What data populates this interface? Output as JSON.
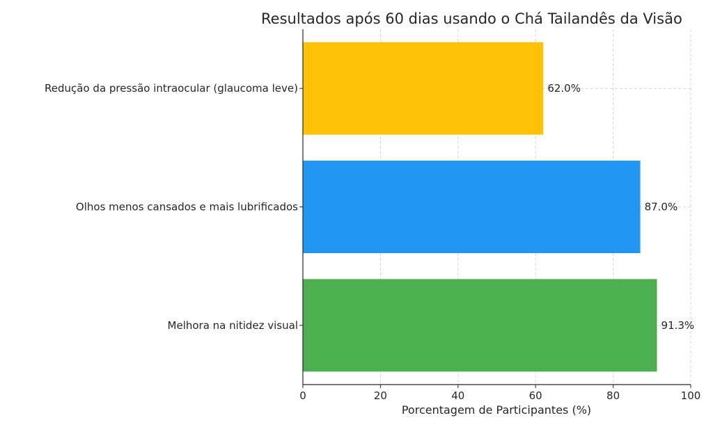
{
  "chart_data": {
    "type": "bar",
    "orientation": "horizontal",
    "title": "Resultados após 60 dias usando o Chá Tailandês da Visão",
    "xlabel": "Porcentagem de Participantes (%)",
    "ylabel": "",
    "xlim": [
      0,
      100
    ],
    "xticks": [
      0,
      20,
      40,
      60,
      80,
      100
    ],
    "grid": true,
    "categories": [
      "Redução da pressão intraocular (glaucoma leve)",
      "Olhos menos cansados e mais lubrificados",
      "Melhora na nitidez visual"
    ],
    "values": [
      62.0,
      87.0,
      91.3
    ],
    "data_labels": [
      "62.0%",
      "87.0%",
      "91.3%"
    ],
    "colors": [
      "#FFC107",
      "#2196F3",
      "#4CAF50"
    ]
  }
}
